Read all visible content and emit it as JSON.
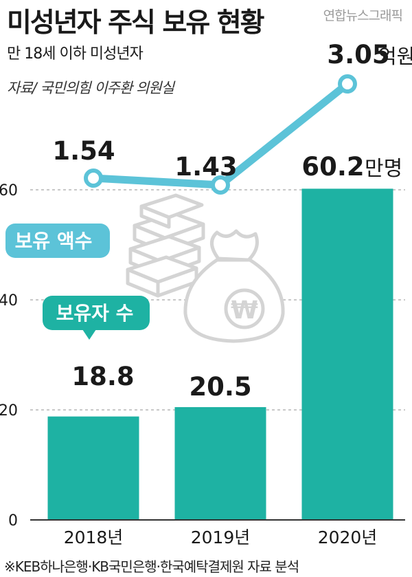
{
  "header": {
    "title": "미성년자 주식 보유 현황",
    "credit": "연합뉴스그래픽",
    "subtitle": "만 18세 이하 미성년자",
    "source": "자료/ 국민의힘 이주환 의원실"
  },
  "footnote": "※KEB하나은행·KB국민은행·한국예탁결제원 자료 분석",
  "colors": {
    "bar": "#1eb2a3",
    "line": "#5cc3d8",
    "pill_amount": "#5cc3d8",
    "pill_count": "#1eb2a3",
    "grid": "#b5b5b5",
    "illustration": "#d8d8d8"
  },
  "icons": [
    "stacked-banknotes-icon",
    "won-money-bag-icon"
  ],
  "chart_data": {
    "type": "bar",
    "categories": [
      "2018년",
      "2019년",
      "2020년"
    ],
    "ylim": [
      0,
      60
    ],
    "yticks": [
      "0",
      "20",
      "40",
      "60"
    ],
    "grid": true,
    "series": [
      {
        "name": "보유자 수",
        "type": "bar",
        "values": [
          18.8,
          20.5,
          60.2
        ],
        "labels": [
          "18.8",
          "20.5",
          "60.2"
        ],
        "unit": "만명"
      },
      {
        "name": "보유 액수",
        "type": "line",
        "values": [
          1.54,
          1.43,
          3.05
        ],
        "labels": [
          "1.54",
          "1.43",
          "3.05"
        ],
        "unit": "억원"
      }
    ]
  }
}
